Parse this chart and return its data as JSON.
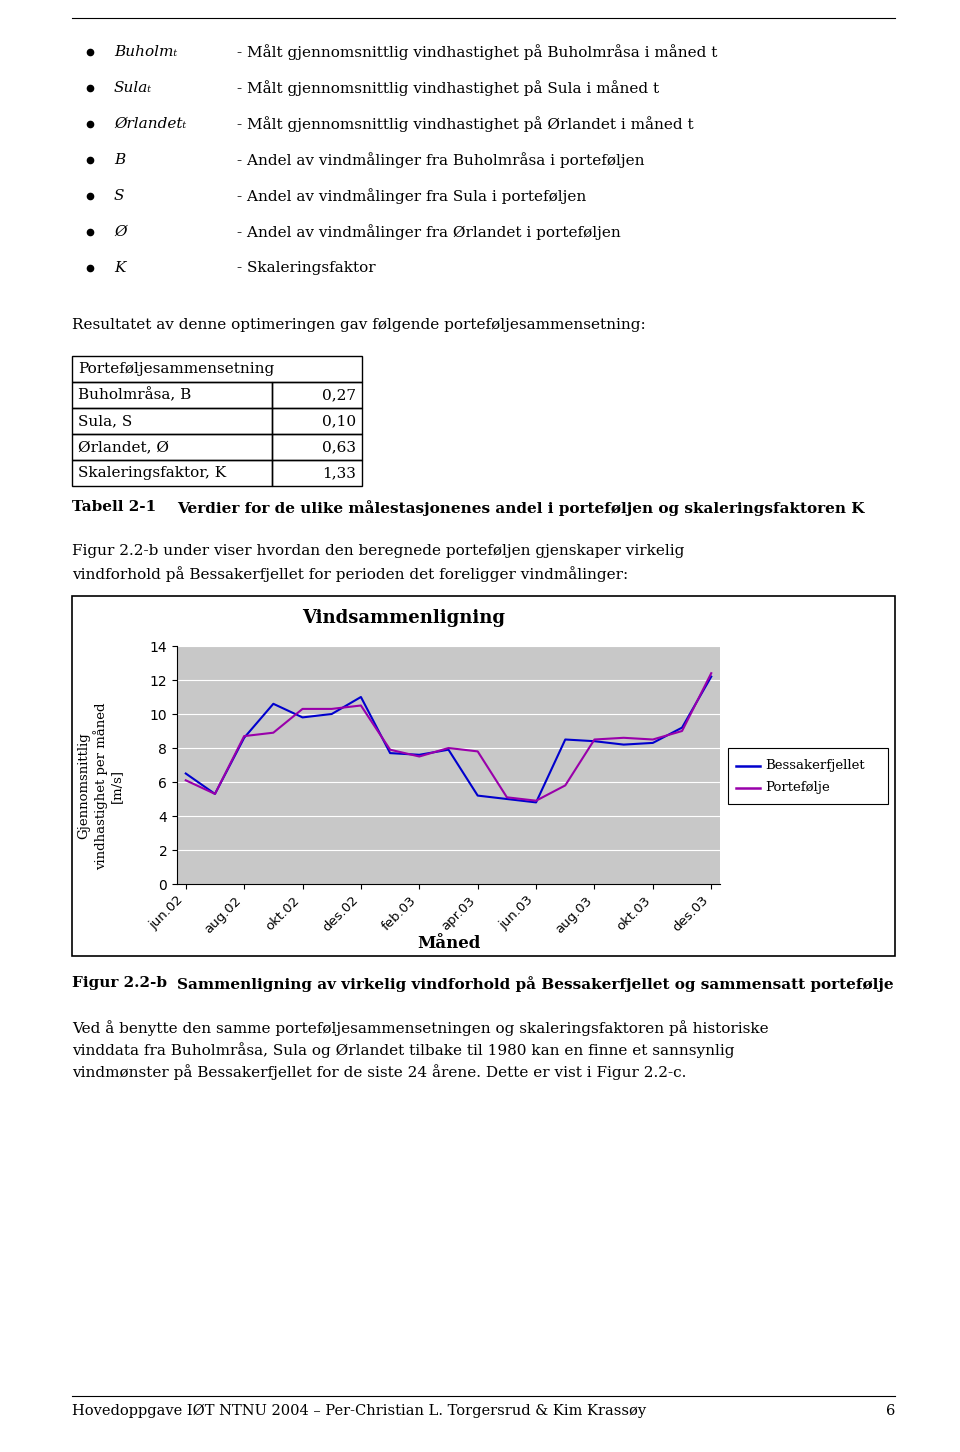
{
  "page_bg": "#ffffff",
  "bullet_items": [
    {
      "symbol": "Buholmₜ",
      "description": "- Målt gjennomsnittlig vindhastighet på Buholmråsa i måned t"
    },
    {
      "symbol": "Sulaₜ",
      "description": "- Målt gjennomsnittlig vindhastighet på Sula i måned t"
    },
    {
      "symbol": "Ørlandetₜ",
      "description": "- Målt gjennomsnittlig vindhastighet på Ørlandet i måned t"
    },
    {
      "symbol": "B",
      "description": "- Andel av vindmålinger fra Buholmråsa i porteføljen"
    },
    {
      "symbol": "S",
      "description": "- Andel av vindmålinger fra Sula i porteføljen"
    },
    {
      "symbol": "Ø",
      "description": "- Andel av vindmålinger fra Ørlandet i porteføljen"
    },
    {
      "symbol": "K",
      "description": "- Skaleringsfaktor"
    }
  ],
  "result_text": "Resultatet av denne optimeringen gav følgende porteføljesammensetning:",
  "table_header": "Porteføljesammensetning",
  "table_rows": [
    [
      "Buholmråsa, B",
      "0,27"
    ],
    [
      "Sula, S",
      "0,10"
    ],
    [
      "Ørlandet, Ø",
      "0,63"
    ],
    [
      "Skaleringsfaktor, K",
      "1,33"
    ]
  ],
  "tabell_label": "Tabell 2-1",
  "tabell_caption": "Verdier for de ulike målestasjonenes andel i porteføljen og skaleringsfaktoren K",
  "figur_intro_line1": "Figur 2.2-b under viser hvordan den beregnede porteføljen gjenskaper virkelig",
  "figur_intro_line2": "vindforhold på Bessakerfjellet for perioden det foreligger vindmålinger:",
  "chart_title": "Vindsammenligning",
  "chart_xlabel": "Måned",
  "chart_ylabel_line1": "Gjennomsnittlig",
  "chart_ylabel_line2": "vindhastighet per måned",
  "chart_ylabel_line3": "[m/s]",
  "chart_yticks": [
    0,
    2,
    4,
    6,
    8,
    10,
    12,
    14
  ],
  "chart_xticks": [
    "jun.02",
    "aug.02",
    "okt.02",
    "des.02",
    "feb.03",
    "apr.03",
    "jun.03",
    "aug.03",
    "okt.03",
    "des.03"
  ],
  "bessakerfjellet": [
    6.5,
    5.3,
    8.6,
    10.6,
    9.8,
    10.0,
    11.0,
    7.7,
    7.6,
    7.9,
    5.2,
    5.0,
    4.8,
    8.5,
    8.4,
    8.2,
    8.3,
    9.2,
    12.2
  ],
  "portefolje": [
    6.1,
    5.3,
    8.7,
    8.9,
    10.3,
    10.3,
    10.5,
    7.9,
    7.5,
    8.0,
    7.8,
    5.1,
    4.9,
    5.8,
    8.5,
    8.6,
    8.5,
    9.0,
    12.4
  ],
  "bessakerfjellet_color": "#0000cd",
  "portefolje_color": "#9900aa",
  "chart_bg": "#c8c8c8",
  "legend_entries": [
    "Bessakerfjellet",
    "Portefølje"
  ],
  "figur_caption_label": "Figur 2.2-b",
  "figur_caption_text": "Sammenligning av virkelig vindforhold på Bessakerfjellet og sammensatt portefølje",
  "bottom_text_line1": "Ved å benytte den samme porteføljesammensetningen og skaleringsfaktoren på historiske",
  "bottom_text_line2": "vinddata fra Buholmråsa, Sula og Ørlandet tilbake til 1980 kan en finne et sannsynlig",
  "bottom_text_line3": "vindmønster på Bessakerfjellet for de siste 24 årene. Dette er vist i Figur 2.2-c.",
  "footer_text": "Hovedoppgave IØT NTNU 2004 – Per-Christian L. Torgersrud & Kim Krassøy",
  "footer_page": "6"
}
